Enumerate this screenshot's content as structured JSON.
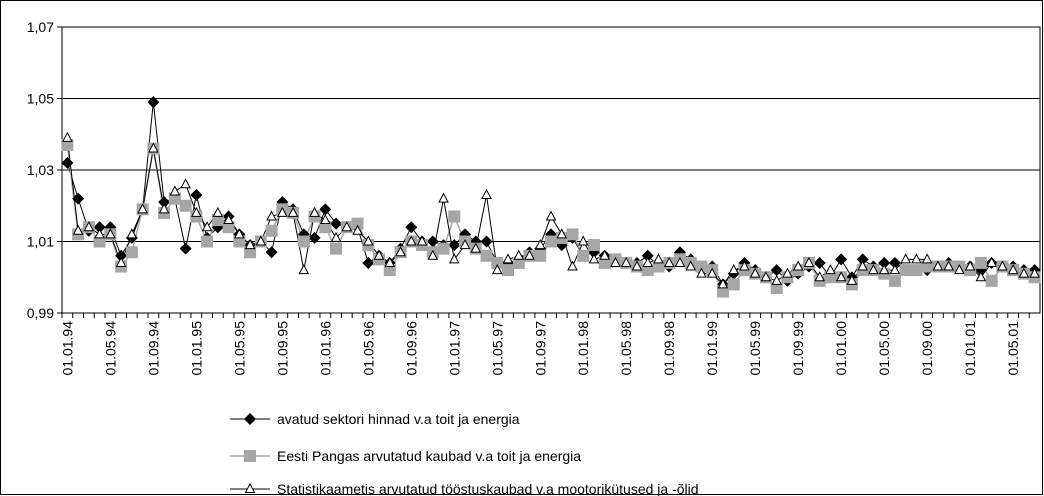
{
  "chart_data": {
    "type": "line",
    "categories": [
      "01.01.94",
      null,
      null,
      null,
      "01.05.94",
      null,
      null,
      null,
      "01.09.94",
      null,
      null,
      null,
      "01.01.95",
      null,
      null,
      null,
      "01.05.95",
      null,
      null,
      null,
      "01.09.95",
      null,
      null,
      null,
      "01.01.96",
      null,
      null,
      null,
      "01.05.96",
      null,
      null,
      null,
      "01.09.96",
      null,
      null,
      null,
      "01.01.97",
      null,
      null,
      null,
      "01.05.97",
      null,
      null,
      null,
      "01.09.97",
      null,
      null,
      null,
      "01.01.98",
      null,
      null,
      null,
      "01.05.98",
      null,
      null,
      null,
      "01.09.98",
      null,
      null,
      null,
      "01.01.99",
      null,
      null,
      null,
      "01.05.99",
      null,
      null,
      null,
      "01.09.99",
      null,
      null,
      null,
      "01.01.00",
      null,
      null,
      null,
      "01.05.00",
      null,
      null,
      null,
      "01.09.00",
      null,
      null,
      null,
      "01.01.01",
      null,
      null,
      null,
      "01.05.01",
      null,
      null
    ],
    "series": [
      {
        "name": "avatud sektori hinnad v.a toit ja energia",
        "color": "#000000",
        "marker": "diamond",
        "values": [
          1.032,
          1.022,
          1.013,
          1.014,
          1.014,
          1.006,
          1.011,
          1.019,
          1.049,
          1.021,
          1.022,
          1.008,
          1.023,
          1.011,
          1.014,
          1.017,
          1.012,
          1.009,
          1.01,
          1.007,
          1.021,
          1.019,
          1.012,
          1.011,
          1.019,
          1.015,
          1.014,
          1.014,
          1.004,
          1.006,
          1.004,
          1.008,
          1.014,
          1.01,
          1.01,
          1.009,
          1.009,
          1.012,
          1.01,
          1.01,
          1.004,
          1.004,
          1.005,
          1.007,
          1.008,
          1.012,
          1.009,
          1.011,
          1.006,
          1.007,
          1.006,
          1.005,
          1.004,
          1.004,
          1.006,
          1.003,
          1.003,
          1.007,
          1.005,
          1.002,
          1.003,
          0.998,
          1.001,
          1.004,
          1.002,
          1.0,
          1.002,
          0.999,
          1.001,
          1.003,
          1.004,
          1.0,
          1.005,
          1.0,
          1.005,
          1.003,
          1.004,
          1.004,
          1.002,
          1.002,
          1.002,
          1.003,
          1.004,
          1.003,
          1.003,
          1.002,
          1.004,
          1.003,
          1.003,
          1.002,
          1.002
        ]
      },
      {
        "name": "Eesti Pangas arvutatud kaubad v.a toit ja energia",
        "color": "#a6a6a6",
        "marker": "square",
        "values": [
          1.037,
          1.012,
          1.014,
          1.01,
          1.012,
          1.003,
          1.007,
          1.019,
          1.036,
          1.018,
          1.022,
          1.02,
          1.017,
          1.01,
          1.016,
          1.014,
          1.01,
          1.007,
          1.01,
          1.013,
          1.019,
          1.018,
          1.01,
          1.017,
          1.014,
          1.008,
          1.014,
          1.015,
          1.009,
          1.005,
          1.002,
          1.007,
          1.01,
          1.009,
          1.007,
          1.008,
          1.017,
          1.01,
          1.008,
          1.006,
          1.004,
          1.002,
          1.004,
          1.006,
          1.006,
          1.01,
          1.011,
          1.012,
          1.006,
          1.009,
          1.004,
          1.005,
          1.004,
          1.003,
          1.002,
          1.003,
          1.004,
          1.005,
          1.004,
          1.003,
          1.002,
          0.996,
          0.998,
          1.002,
          1.001,
          1.0,
          0.997,
          1.0,
          1.002,
          1.004,
          0.999,
          1.0,
          1.0,
          0.998,
          1.002,
          1.002,
          1.001,
          0.999,
          1.002,
          1.002,
          1.003,
          1.003,
          1.003,
          1.003,
          1.002,
          1.004,
          0.999,
          1.003,
          1.002,
          1.001,
          1.0
        ]
      },
      {
        "name": "Statistikaametis arvutatud tööstuskaubad v.a mootorikütused ja -õlid",
        "color": "#000000",
        "marker": "triangle",
        "values": [
          1.039,
          1.013,
          1.014,
          1.012,
          1.012,
          1.004,
          1.012,
          1.019,
          1.036,
          1.019,
          1.024,
          1.026,
          1.018,
          1.014,
          1.018,
          1.016,
          1.012,
          1.009,
          1.01,
          1.017,
          1.018,
          1.018,
          1.002,
          1.018,
          1.016,
          1.011,
          1.014,
          1.013,
          1.01,
          1.006,
          1.004,
          1.007,
          1.01,
          1.01,
          1.006,
          1.022,
          1.005,
          1.009,
          1.008,
          1.023,
          1.002,
          1.005,
          1.006,
          1.006,
          1.009,
          1.017,
          1.012,
          1.003,
          1.01,
          1.005,
          1.006,
          1.004,
          1.004,
          1.003,
          1.004,
          1.005,
          1.004,
          1.004,
          1.003,
          1.001,
          1.001,
          0.998,
          1.002,
          1.003,
          1.001,
          1.0,
          0.999,
          1.001,
          1.003,
          1.004,
          1.0,
          1.002,
          1.0,
          0.999,
          1.003,
          1.002,
          1.002,
          1.002,
          1.005,
          1.005,
          1.005,
          1.003,
          1.003,
          1.002,
          1.003,
          1.0,
          1.004,
          1.003,
          1.002,
          1.001,
          1.001
        ]
      }
    ],
    "ylim": [
      0.99,
      1.07
    ],
    "yticks": [
      {
        "value": 0.99,
        "label": "0,99"
      },
      {
        "value": 1.01,
        "label": "1,01"
      },
      {
        "value": 1.03,
        "label": "1,03"
      },
      {
        "value": 1.05,
        "label": "1,05"
      },
      {
        "value": 1.07,
        "label": "1,07"
      }
    ],
    "grid": true,
    "legend": "bottom"
  }
}
